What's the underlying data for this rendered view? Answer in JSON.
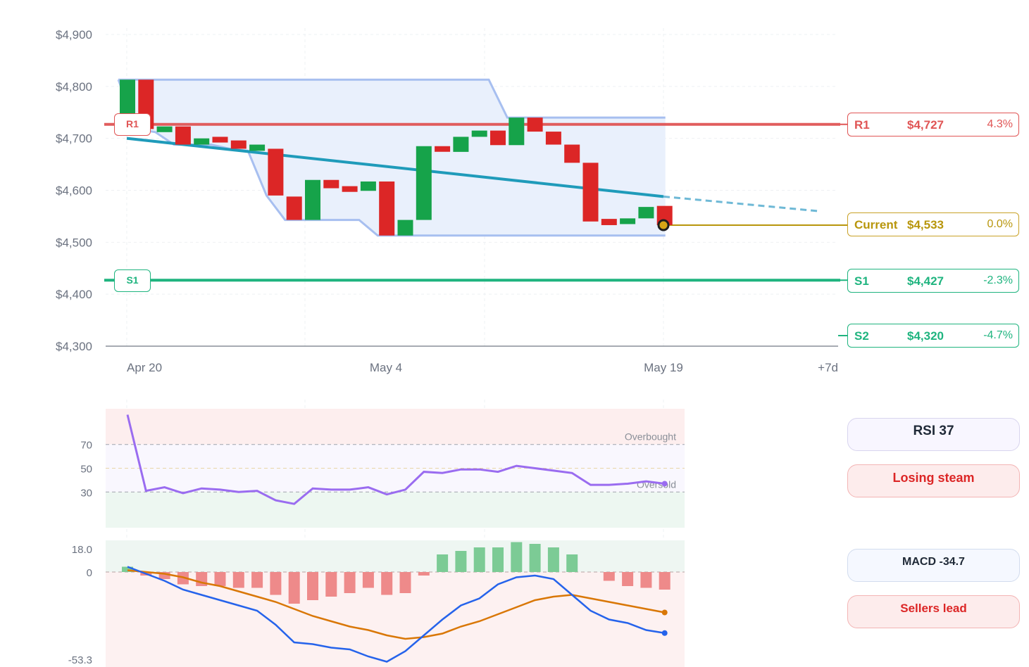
{
  "chart_data": {
    "type": "candlestick",
    "y_ticks": [
      "$4,900",
      "$4,800",
      "$4,700",
      "$4,600",
      "$4,500",
      "$4,400",
      "$4,300"
    ],
    "ylim": [
      4300,
      4900
    ],
    "x_ticks": [
      "Apr 20",
      "May 4",
      "May 19",
      "+7d"
    ],
    "candles": [
      {
        "o": 4715,
        "c": 4813,
        "h": 4813,
        "l": 4715
      },
      {
        "o": 4813,
        "c": 4718,
        "h": 4813,
        "l": 4718
      },
      {
        "o": 4712,
        "c": 4723,
        "h": 4723,
        "l": 4712
      },
      {
        "o": 4723,
        "c": 4688,
        "h": 4723,
        "l": 4688
      },
      {
        "o": 4688,
        "c": 4700,
        "h": 4700,
        "l": 4688
      },
      {
        "o": 4703,
        "c": 4692,
        "h": 4703,
        "l": 4692
      },
      {
        "o": 4696,
        "c": 4680,
        "h": 4696,
        "l": 4680
      },
      {
        "o": 4676,
        "c": 4688,
        "h": 4688,
        "l": 4676
      },
      {
        "o": 4680,
        "c": 4590,
        "h": 4680,
        "l": 4590
      },
      {
        "o": 4588,
        "c": 4543,
        "h": 4588,
        "l": 4543
      },
      {
        "o": 4543,
        "c": 4620,
        "h": 4620,
        "l": 4543
      },
      {
        "o": 4620,
        "c": 4604,
        "h": 4620,
        "l": 4604
      },
      {
        "o": 4608,
        "c": 4597,
        "h": 4608,
        "l": 4597
      },
      {
        "o": 4599,
        "c": 4617,
        "h": 4617,
        "l": 4599
      },
      {
        "o": 4617,
        "c": 4513,
        "h": 4617,
        "l": 4513
      },
      {
        "o": 4513,
        "c": 4543,
        "h": 4543,
        "l": 4513
      },
      {
        "o": 4543,
        "c": 4685,
        "h": 4685,
        "l": 4543
      },
      {
        "o": 4685,
        "c": 4675,
        "h": 4685,
        "l": 4675
      },
      {
        "o": 4674,
        "c": 4703,
        "h": 4703,
        "l": 4674
      },
      {
        "o": 4703,
        "c": 4715,
        "h": 4715,
        "l": 4703
      },
      {
        "o": 4715,
        "c": 4687,
        "h": 4715,
        "l": 4687
      },
      {
        "o": 4687,
        "c": 4740,
        "h": 4740,
        "l": 4687
      },
      {
        "o": 4740,
        "c": 4713,
        "h": 4740,
        "l": 4713
      },
      {
        "o": 4713,
        "c": 4688,
        "h": 4713,
        "l": 4688
      },
      {
        "o": 4688,
        "c": 4653,
        "h": 4688,
        "l": 4653
      },
      {
        "o": 4653,
        "c": 4540,
        "h": 4653,
        "l": 4540
      },
      {
        "o": 4545,
        "c": 4533,
        "h": 4545,
        "l": 4533
      },
      {
        "o": 4535,
        "c": 4546,
        "h": 4546,
        "l": 4535
      },
      {
        "o": 4546,
        "c": 4568,
        "h": 4568,
        "l": 4546
      },
      {
        "o": 4570,
        "c": 4533,
        "h": 4570,
        "l": 4533
      }
    ],
    "channel_upper": [
      4813,
      4813,
      4813,
      4813,
      4813,
      4813,
      4813,
      4813,
      4813,
      4813,
      4813,
      4813,
      4813,
      4813,
      4813,
      4813,
      4813,
      4813,
      4813,
      4813,
      4813,
      4740,
      4740,
      4740,
      4740,
      4740,
      4740,
      4740,
      4740,
      4740
    ],
    "channel_lower": [
      4813,
      4718,
      4712,
      4688,
      4688,
      4688,
      4680,
      4676,
      4590,
      4543,
      4543,
      4543,
      4543,
      4543,
      4513,
      4513,
      4513,
      4513,
      4513,
      4513,
      4513,
      4513,
      4513,
      4513,
      4513,
      4513,
      4513,
      4513,
      4513,
      4513
    ],
    "trend_start": 4700,
    "trend_end": 4588,
    "trend_projection": 4560,
    "levels": [
      {
        "name": "R1",
        "price": "$4,727",
        "pct": "4.3%",
        "value": 4727,
        "color": "#e05555"
      },
      {
        "name": "Current",
        "price": "$4,533",
        "pct": "0.0%",
        "value": 4533,
        "color": "#b8960c"
      },
      {
        "name": "S1",
        "price": "$4,427",
        "pct": "-2.3%",
        "value": 4427,
        "color": "#1fb47f"
      },
      {
        "name": "S2",
        "price": "$4,320",
        "pct": "-4.7%",
        "value": 4320,
        "color": "#1fb47f"
      }
    ],
    "rsi": {
      "ticks": [
        "70",
        "50",
        "30"
      ],
      "overbought_label": "Overbought",
      "oversold_label": "Oversold",
      "values": [
        95,
        31,
        34,
        29,
        33,
        32,
        30,
        31,
        23,
        20,
        33,
        32,
        32,
        34,
        28,
        32,
        47,
        46,
        49,
        49,
        47,
        52,
        50,
        48,
        46,
        36,
        36,
        37,
        39,
        37
      ]
    },
    "macd": {
      "ticks": [
        "18.0",
        "0",
        "-53.3"
      ],
      "ylim": [
        -53.3,
        18.0
      ],
      "histogram": [
        3,
        -2,
        -4,
        -7,
        -8,
        -8,
        -9,
        -9,
        -13,
        -18,
        -16,
        -14,
        -12,
        -9,
        -13,
        -12,
        -2,
        10,
        12,
        14,
        14,
        17,
        16,
        14,
        10,
        0,
        -5,
        -8,
        -9,
        -10
      ],
      "macd_line": [
        3,
        -1,
        -5,
        -10,
        -13,
        -16,
        -19,
        -22,
        -30,
        -40,
        -41,
        -43,
        -44,
        -48,
        -51,
        -45,
        -36,
        -27,
        -19,
        -15,
        -7,
        -3,
        -2,
        -4,
        -13,
        -22,
        -27,
        -29,
        -33,
        -34.7
      ],
      "signal_line": [
        1,
        0,
        -1,
        -3,
        -6,
        -8,
        -11,
        -14,
        -17,
        -21,
        -25,
        -28,
        -31,
        -33,
        -36,
        -38,
        -37,
        -35,
        -31,
        -28,
        -24,
        -20,
        -16,
        -14,
        -13,
        -15,
        -17,
        -19,
        -21,
        -23
      ]
    }
  },
  "panels": {
    "rsi_title": "RSI 37",
    "rsi_status": "Losing steam",
    "macd_title": "MACD -34.7",
    "macd_status": "Sellers lead"
  },
  "colors": {
    "up": "#16a34a",
    "down": "#dc2626",
    "channel": "#a7bff0",
    "trend": "#1f9bba",
    "rsi_line": "#9a6cf0",
    "macd_line": "#2563eb",
    "signal_line": "#d97706"
  }
}
